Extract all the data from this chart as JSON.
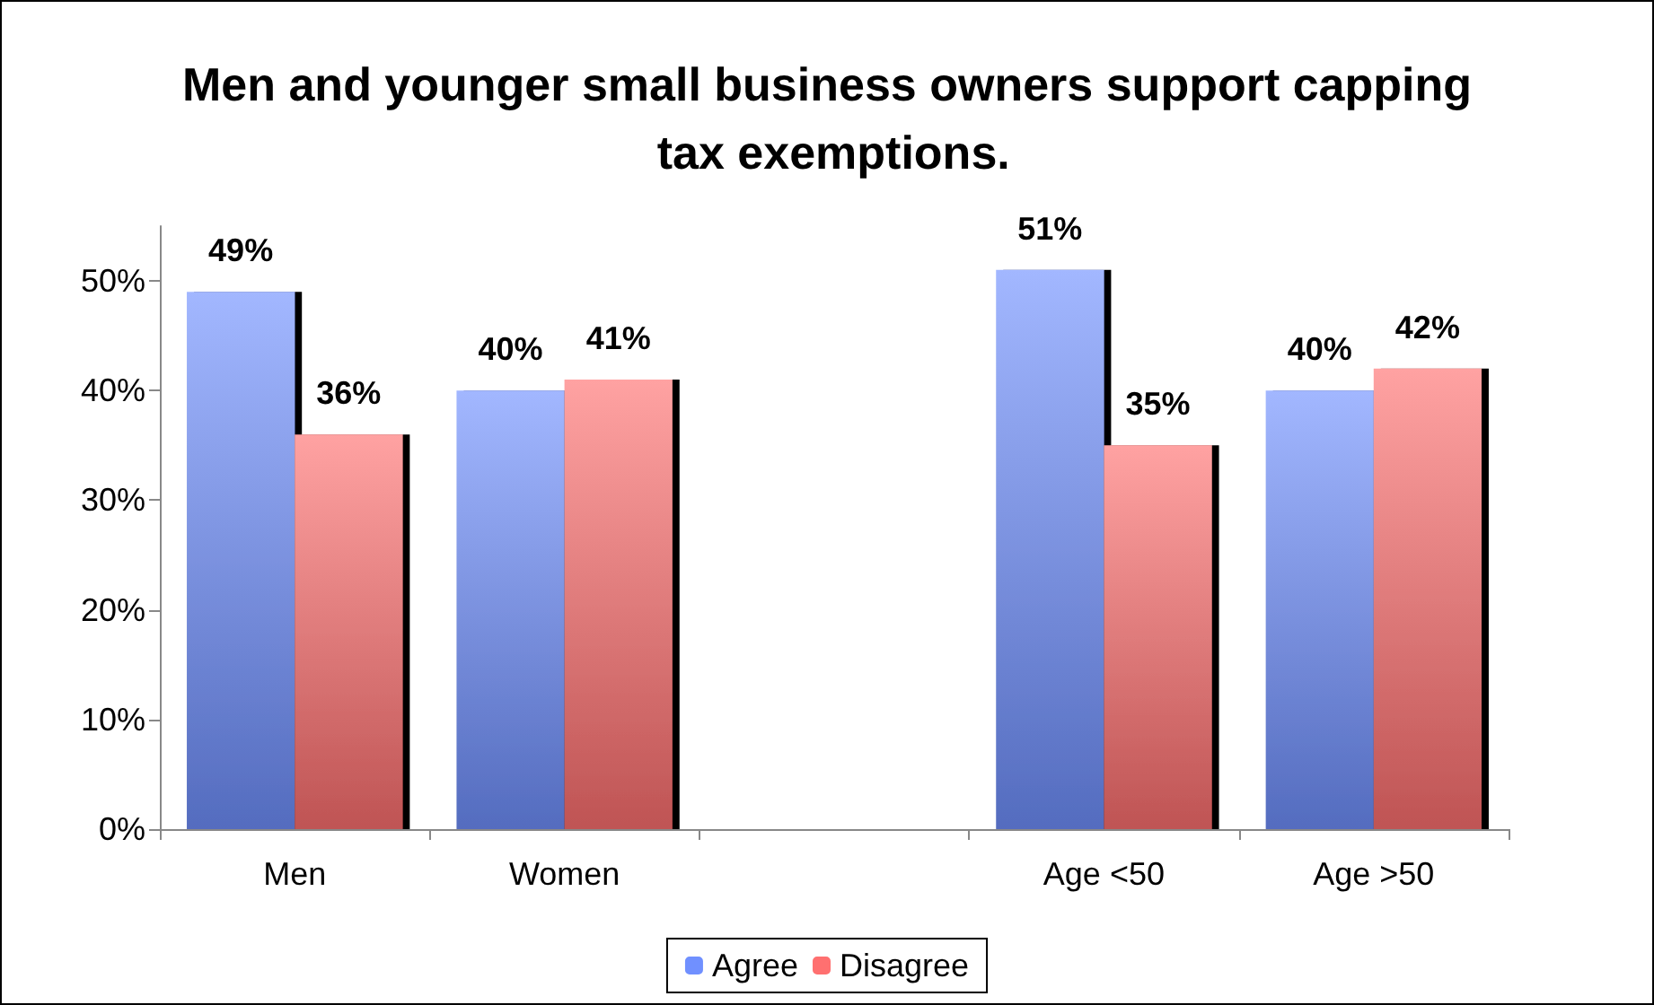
{
  "chart_data": {
    "type": "bar",
    "title": "Men and younger small business owners support capping tax exemptions.",
    "categories": [
      "Men",
      "Women",
      null,
      "Age <50",
      "Age >50"
    ],
    "series": [
      {
        "name": "Agree",
        "color": "#7090ff",
        "values": [
          49,
          40,
          null,
          51,
          40
        ],
        "value_labels": [
          "49%",
          "40%",
          null,
          "51%",
          "40%"
        ]
      },
      {
        "name": "Disagree",
        "color": "#ff7070",
        "values": [
          36,
          41,
          null,
          35,
          42
        ],
        "value_labels": [
          "36%",
          "41%",
          null,
          "35%",
          "42%"
        ]
      }
    ],
    "ylim": [
      0,
      55
    ],
    "yticks": [
      {
        "value": 0,
        "label": "0%"
      },
      {
        "value": 10,
        "label": "10%"
      },
      {
        "value": 20,
        "label": "20%"
      },
      {
        "value": 30,
        "label": "30%"
      },
      {
        "value": 40,
        "label": "40%"
      },
      {
        "value": 50,
        "label": "50%"
      }
    ],
    "grid": false,
    "legend": "bottom"
  }
}
